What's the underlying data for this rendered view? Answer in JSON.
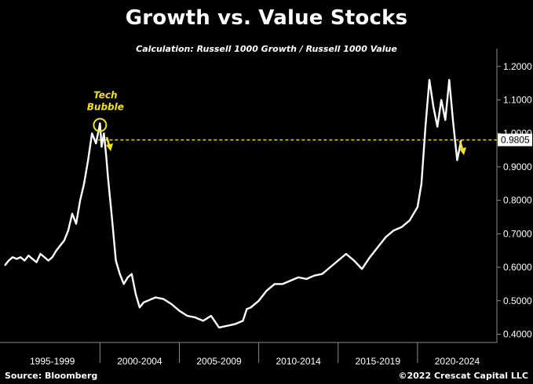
{
  "title": "Growth vs. Value Stocks",
  "subtitle": "Calculation: Russell 1000 Growth / Russell 1000 Value",
  "footer": {
    "source": "Source: Bloomberg",
    "copyright": "©2022 Crescat Capital LLC"
  },
  "colors": {
    "background": "#000000",
    "line": "#ffffff",
    "annotation": "#f2e21a",
    "axis": "#8c8c8c"
  },
  "chart_data": {
    "type": "line",
    "title": "Growth vs. Value Stocks",
    "subtitle": "Calculation: Russell 1000 Growth / Russell 1000 Value",
    "xlim": [
      1994.0,
      2025.0
    ],
    "ylim": [
      0.38,
      1.23
    ],
    "yticks": [
      0.4,
      0.5,
      0.6,
      0.7,
      0.8,
      0.9,
      1.0,
      1.1,
      1.2
    ],
    "ytick_labels": [
      "0.4000",
      "0.5000",
      "0.6000",
      "0.7000",
      "0.8000",
      "0.9000",
      "1.0000",
      "1.1000",
      "1.2000"
    ],
    "x_period_labels": [
      {
        "label": "1995-1999",
        "from": 1994.0,
        "to": 2000.0
      },
      {
        "label": "2000-2004",
        "from": 2000.0,
        "to": 2005.0
      },
      {
        "label": "2005-2009",
        "from": 2005.0,
        "to": 2010.0
      },
      {
        "label": "2010-2014",
        "from": 2010.0,
        "to": 2015.0
      },
      {
        "label": "2015-2019",
        "from": 2015.0,
        "to": 2020.0
      },
      {
        "label": "2020-2024",
        "from": 2020.0,
        "to": 2025.0
      }
    ],
    "last_value": 0.9805,
    "last_value_label": "0.9805",
    "reference_line": {
      "y": 0.9805,
      "from_x": 1999.9,
      "style": "dashed"
    },
    "annotations": [
      {
        "text": "Tech\nBubble",
        "x": 2000.0,
        "y": 1.025
      }
    ],
    "grid": false,
    "series": [
      {
        "x": [
          1994.0,
          1994.25,
          1994.5,
          1994.75,
          1995.0,
          1995.25,
          1995.5,
          1995.75,
          1996.0,
          1996.25,
          1996.5,
          1996.75,
          1997.0,
          1997.25,
          1997.5,
          1997.75,
          1998.0,
          1998.25,
          1998.5,
          1998.75,
          1999.0,
          1999.25,
          1999.5,
          1999.75,
          2000.0,
          2000.1,
          2000.25,
          2000.4,
          2000.5,
          2000.75,
          2001.0,
          2001.25,
          2001.5,
          2001.75,
          2002.0,
          2002.25,
          2002.5,
          2002.75,
          2003.0,
          2003.5,
          2004.0,
          2004.5,
          2005.0,
          2005.5,
          2006.0,
          2006.5,
          2007.0,
          2007.5,
          2008.0,
          2008.5,
          2009.0,
          2009.25,
          2009.5,
          2010.0,
          2010.5,
          2011.0,
          2011.5,
          2012.0,
          2012.5,
          2013.0,
          2013.5,
          2014.0,
          2014.5,
          2015.0,
          2015.5,
          2016.0,
          2016.5,
          2017.0,
          2017.5,
          2018.0,
          2018.5,
          2019.0,
          2019.5,
          2020.0,
          2020.25,
          2020.5,
          2020.75,
          2021.0,
          2021.25,
          2021.5,
          2021.75,
          2022.0,
          2022.25,
          2022.5,
          2022.75
        ],
        "y": [
          0.605,
          0.62,
          0.63,
          0.625,
          0.63,
          0.62,
          0.635,
          0.625,
          0.615,
          0.64,
          0.63,
          0.62,
          0.63,
          0.65,
          0.665,
          0.68,
          0.71,
          0.76,
          0.73,
          0.8,
          0.85,
          0.92,
          1.0,
          0.97,
          1.03,
          0.96,
          1.0,
          0.93,
          0.87,
          0.75,
          0.62,
          0.58,
          0.55,
          0.57,
          0.58,
          0.52,
          0.48,
          0.495,
          0.5,
          0.51,
          0.505,
          0.49,
          0.47,
          0.455,
          0.45,
          0.44,
          0.455,
          0.42,
          0.425,
          0.43,
          0.44,
          0.475,
          0.48,
          0.5,
          0.53,
          0.55,
          0.55,
          0.56,
          0.57,
          0.565,
          0.575,
          0.58,
          0.6,
          0.62,
          0.64,
          0.62,
          0.595,
          0.63,
          0.66,
          0.69,
          0.71,
          0.72,
          0.74,
          0.78,
          0.85,
          1.02,
          1.16,
          1.08,
          1.02,
          1.1,
          1.04,
          1.16,
          1.03,
          0.92,
          0.98
        ]
      }
    ]
  }
}
